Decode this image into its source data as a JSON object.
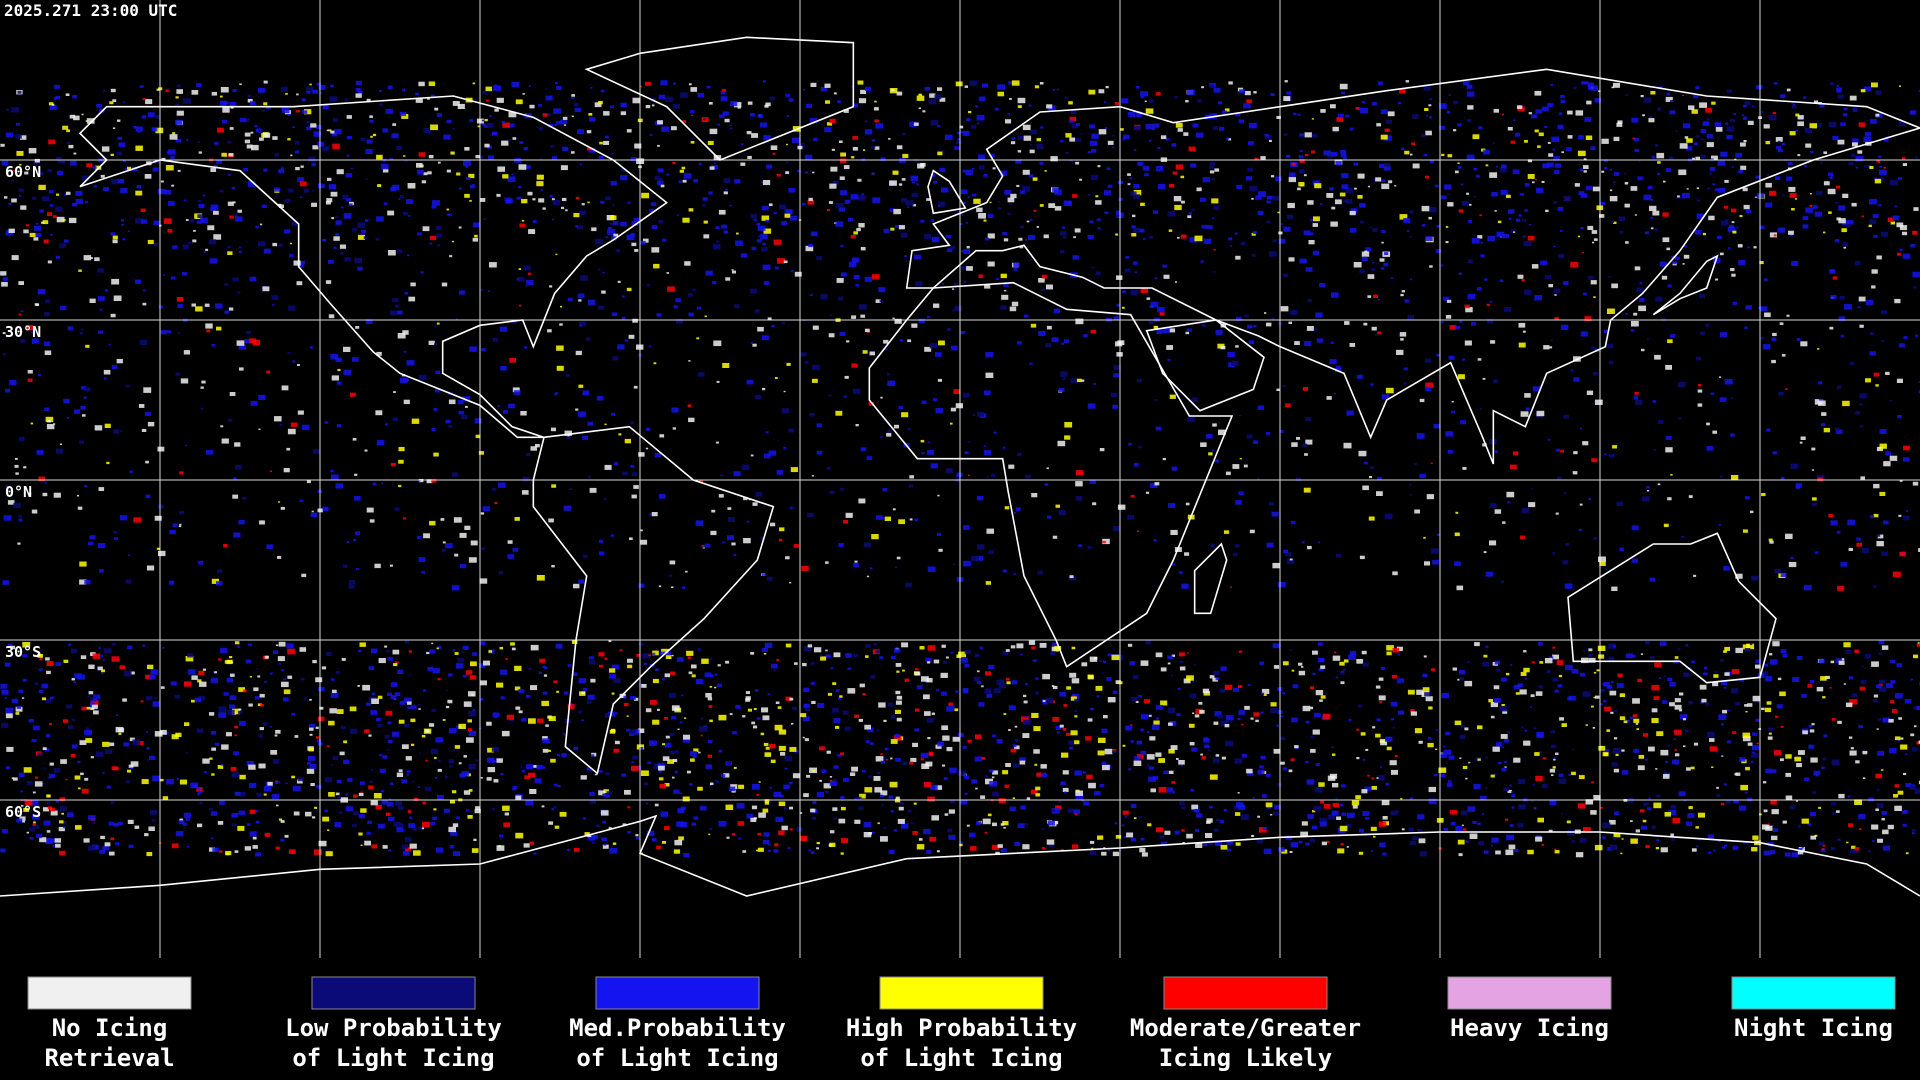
{
  "header": {
    "timestamp": "2025.271 23:00 UTC"
  },
  "latitude_labels": [
    "60°N",
    "30°N",
    "0°N",
    "30°S",
    "60°S"
  ],
  "legend": [
    {
      "lines": [
        "No Icing",
        "Retrieval"
      ],
      "color": "#f0f0f0"
    },
    {
      "lines": [
        "Low Probability",
        "of Light Icing"
      ],
      "color": "#0a0a78"
    },
    {
      "lines": [
        "Med.Probability",
        "of Light Icing"
      ],
      "color": "#1414f0"
    },
    {
      "lines": [
        "High Probability",
        "of Light Icing"
      ],
      "color": "#ffff00"
    },
    {
      "lines": [
        "Moderate/Greater",
        "Icing Likely"
      ],
      "color": "#ff0000"
    },
    {
      "lines": [
        "Heavy Icing"
      ],
      "color": "#e4a4e4"
    },
    {
      "lines": [
        "Night Icing"
      ],
      "color": "#00ffff"
    }
  ]
}
